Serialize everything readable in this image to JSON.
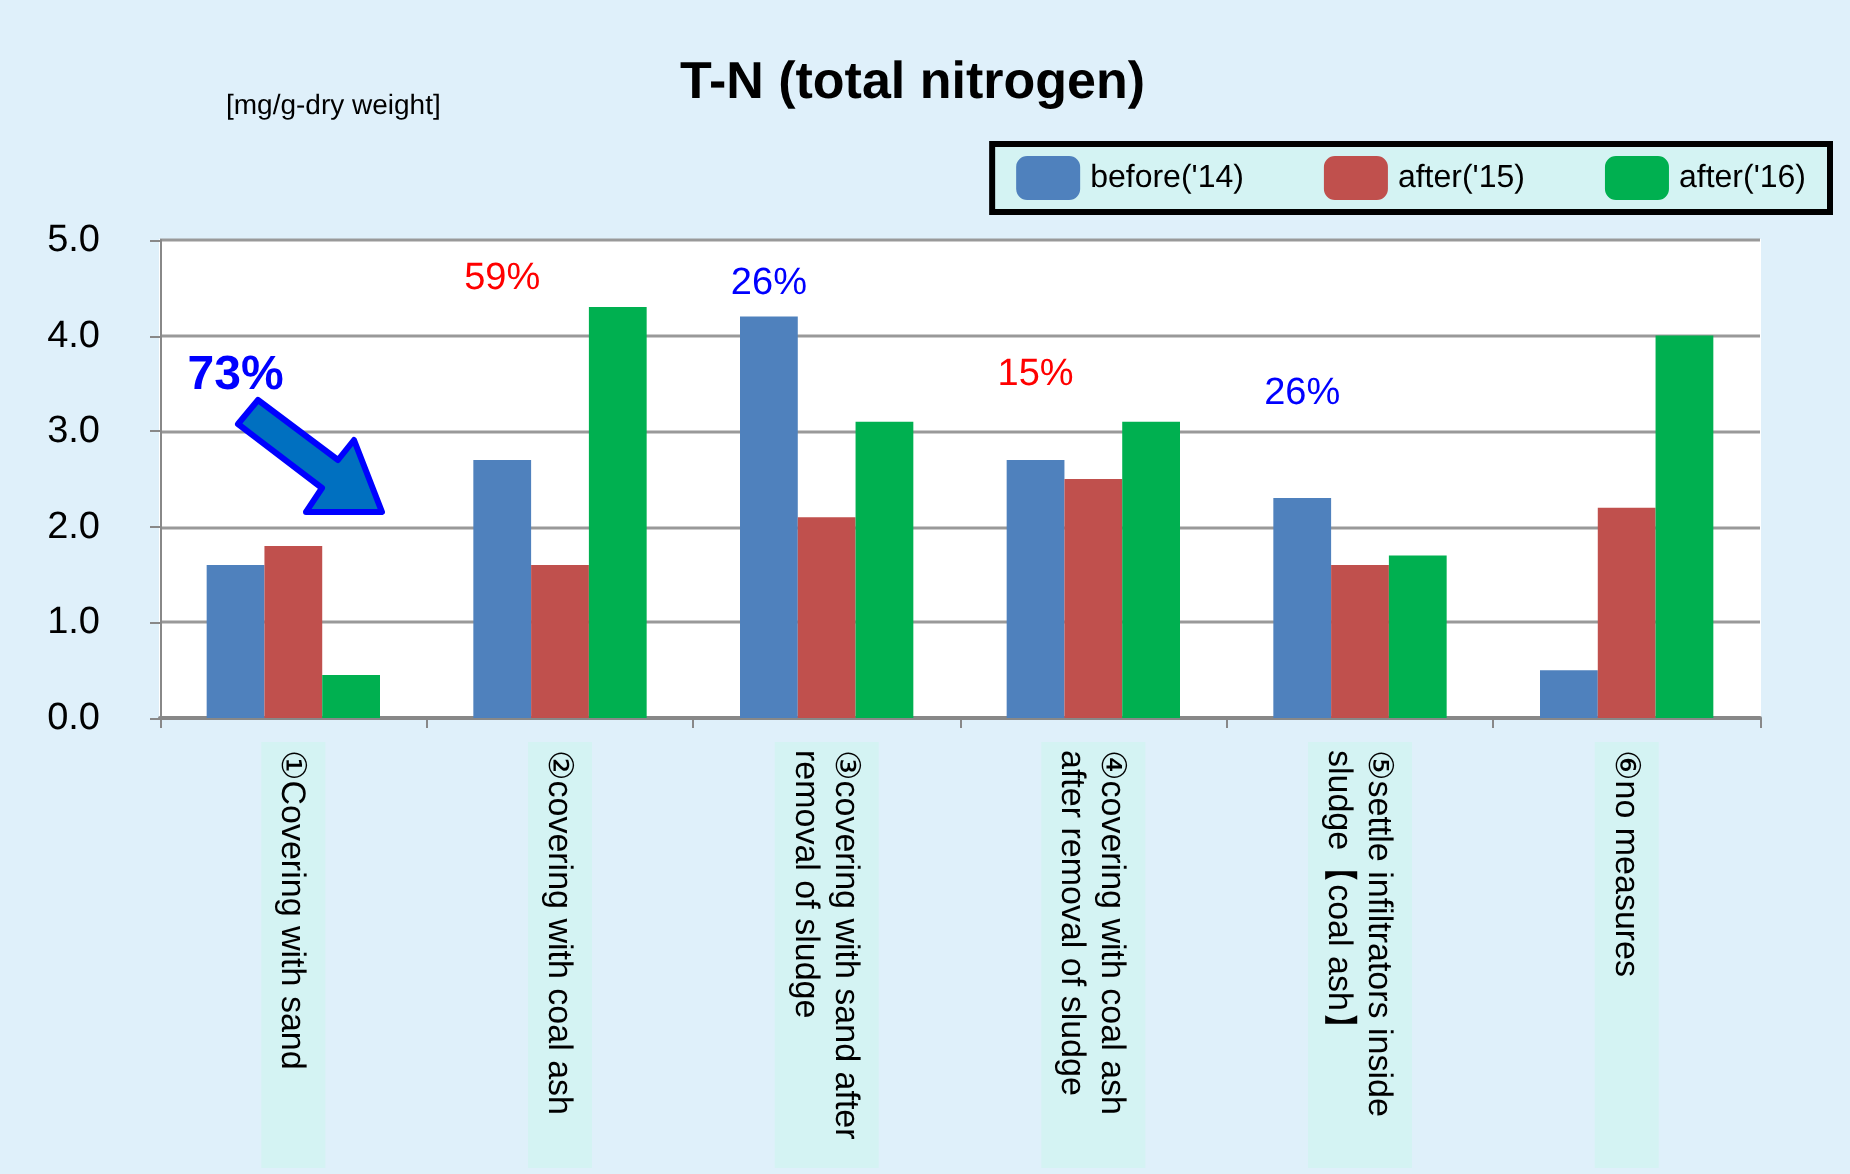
{
  "chart_data": {
    "type": "bar",
    "title": "T-N (total nitrogen)",
    "ylabel": "[mg/g-dry weight]",
    "categories": [
      "①Covering with sand",
      "②covering with coal ash",
      "③covering with sand after removal of sludge",
      "④covering with coal ash after removal of sludge",
      "⑤settle infiltrators inside sludge【coal ash】",
      "⑥no measures"
    ],
    "series": [
      {
        "name": "before('14)",
        "color": "#4f81bd",
        "values": [
          1.6,
          2.7,
          4.2,
          2.7,
          2.3,
          0.5
        ]
      },
      {
        "name": "after('15)",
        "color": "#c0504d",
        "values": [
          1.8,
          1.6,
          2.1,
          2.5,
          1.6,
          2.2
        ]
      },
      {
        "name": "after('16)",
        "color": "#00b050",
        "values": [
          0.45,
          4.3,
          3.1,
          3.1,
          1.7,
          4.0
        ]
      }
    ],
    "ylim": [
      0,
      5
    ],
    "yticks": [
      {
        "value": 0,
        "label": "0.0"
      },
      {
        "value": 1,
        "label": "1.0"
      },
      {
        "value": 2,
        "label": "2.0"
      },
      {
        "value": 3,
        "label": "3.0"
      },
      {
        "value": 4,
        "label": "4.0"
      },
      {
        "value": 5,
        "label": "5.0"
      }
    ],
    "annotations": [
      "73%",
      "59%",
      "26%",
      "15%",
      "26%"
    ],
    "grid": "y",
    "legend": "top right"
  }
}
